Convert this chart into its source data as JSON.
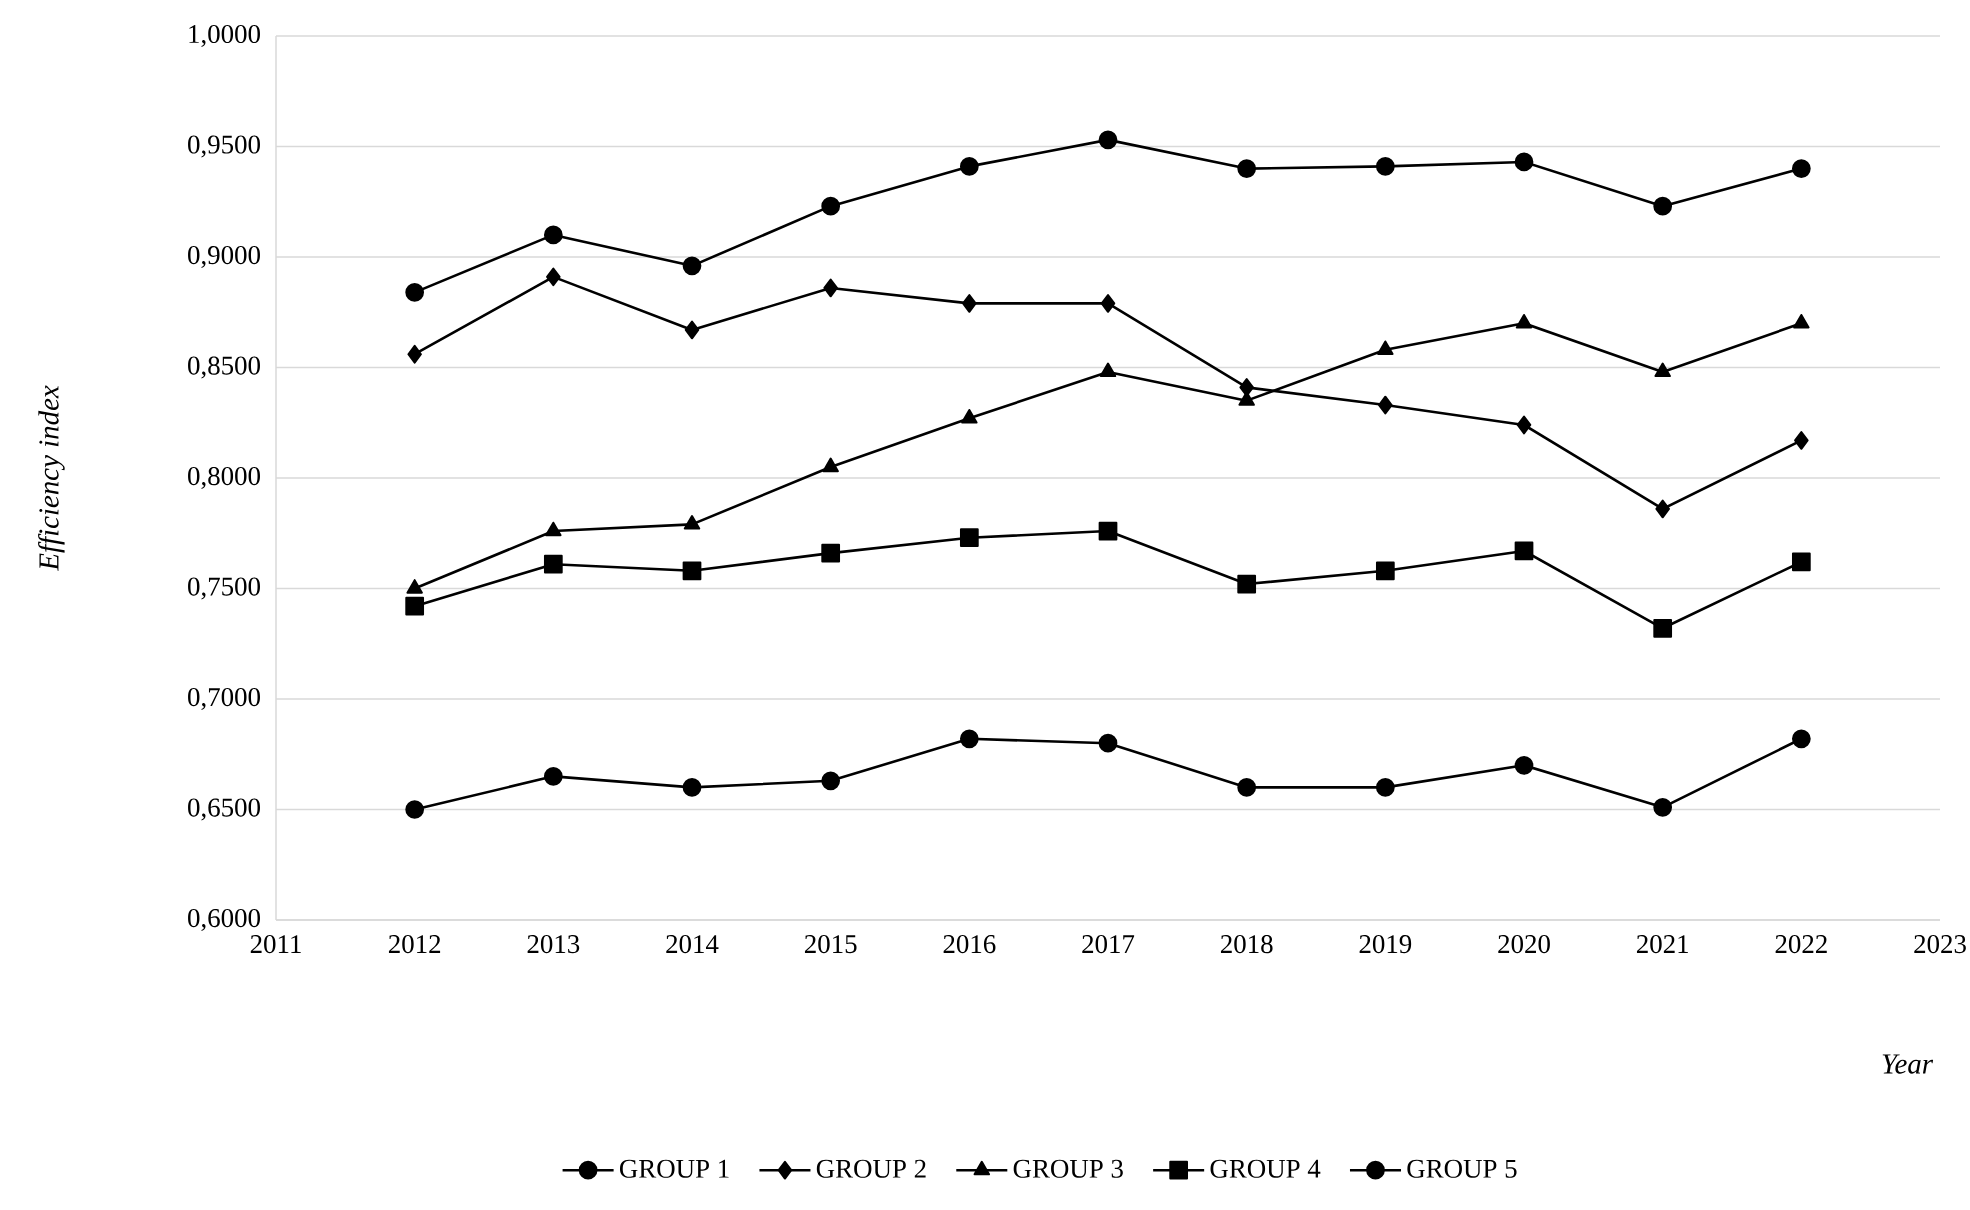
{
  "chart_data": {
    "type": "line",
    "xlabel": "Year",
    "ylabel": "Efficiency index",
    "x": [
      2012,
      2013,
      2014,
      2015,
      2016,
      2017,
      2018,
      2019,
      2020,
      2021,
      2022
    ],
    "xlim": [
      2011,
      2023
    ],
    "xticks": [
      2011,
      2012,
      2013,
      2014,
      2015,
      2016,
      2017,
      2018,
      2019,
      2020,
      2021,
      2022,
      2023
    ],
    "ylim": [
      0.6,
      1.0
    ],
    "yticks": [
      {
        "value": 0.6,
        "label": "0,6000"
      },
      {
        "value": 0.65,
        "label": "0,6500"
      },
      {
        "value": 0.7,
        "label": "0,7000"
      },
      {
        "value": 0.75,
        "label": "0,7500"
      },
      {
        "value": 0.8,
        "label": "0,8000"
      },
      {
        "value": 0.85,
        "label": "0,8500"
      },
      {
        "value": 0.9,
        "label": "0,9000"
      },
      {
        "value": 0.95,
        "label": "0,9500"
      },
      {
        "value": 1.0,
        "label": "1,0000"
      }
    ],
    "grid": "y",
    "legend": "bottom",
    "line_style": "solid",
    "series": [
      {
        "name": "GROUP 1",
        "color": "#000000",
        "marker": "circle",
        "values": [
          0.884,
          0.91,
          0.896,
          0.923,
          0.941,
          0.953,
          0.94,
          0.941,
          0.943,
          0.923,
          0.94
        ]
      },
      {
        "name": "GROUP 2",
        "color": "#000000",
        "marker": "diamond",
        "values": [
          0.856,
          0.891,
          0.867,
          0.886,
          0.879,
          0.879,
          0.841,
          0.833,
          0.824,
          0.786,
          0.817
        ]
      },
      {
        "name": "GROUP 3",
        "color": "#000000",
        "marker": "triangle",
        "values": [
          0.75,
          0.776,
          0.779,
          0.805,
          0.827,
          0.848,
          0.835,
          0.858,
          0.87,
          0.848,
          0.87
        ]
      },
      {
        "name": "GROUP 4",
        "color": "#000000",
        "marker": "square",
        "values": [
          0.742,
          0.761,
          0.758,
          0.766,
          0.773,
          0.776,
          0.752,
          0.758,
          0.767,
          0.732,
          0.762
        ]
      },
      {
        "name": "GROUP 5",
        "color": "#000000",
        "marker": "circle",
        "values": [
          0.65,
          0.665,
          0.66,
          0.663,
          0.682,
          0.68,
          0.66,
          0.66,
          0.67,
          0.651,
          0.682
        ]
      }
    ]
  }
}
